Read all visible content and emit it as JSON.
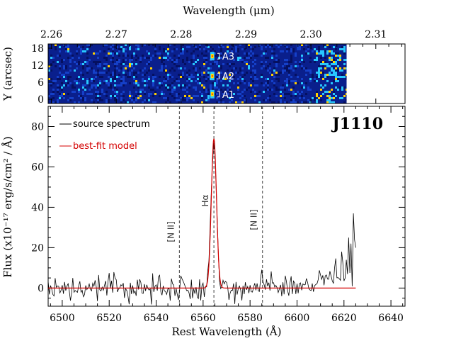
{
  "chart_data": [
    {
      "panel": "2d-spectrum",
      "type": "heatmap",
      "title": "Wavelength (μm)",
      "xlabel": "Wavelength (μm)",
      "ylabel": "Y (arcsec)",
      "xlim": [
        2.2595,
        2.3145
      ],
      "ylim": [
        -1.5,
        19.5
      ],
      "xticks": [
        2.26,
        2.27,
        2.28,
        2.29,
        2.3,
        2.31
      ],
      "xtick_labels": [
        "2.26",
        "2.27",
        "2.28",
        "2.29",
        "2.30",
        "2.31"
      ],
      "yticks": [
        0,
        6,
        12,
        18
      ],
      "ytick_labels": [
        "0",
        "6",
        "12",
        "18"
      ],
      "data_xmax": 2.3055,
      "emission_line_x": 2.2848,
      "apertures": [
        {
          "label": "A3",
          "y": 15.2
        },
        {
          "label": "A2",
          "y": 8.2
        },
        {
          "label": "A1",
          "y": 1.8
        }
      ]
    },
    {
      "panel": "1d-spectrum",
      "type": "line",
      "title": "J1110",
      "xlabel": "Rest Wavelength (Å)",
      "ylabel": "Flux (x10⁻¹⁷ erg/s/cm² / Å)",
      "xlim": [
        6494,
        6646
      ],
      "ylim": [
        -9,
        90
      ],
      "xticks": [
        6500,
        6520,
        6540,
        6560,
        6580,
        6600,
        6620,
        6640
      ],
      "xtick_labels": [
        "6500",
        "6520",
        "6540",
        "6560",
        "6580",
        "6600",
        "6620",
        "6640"
      ],
      "yticks": [
        0,
        20,
        40,
        60,
        80
      ],
      "ytick_labels": [
        "0",
        "20",
        "40",
        "60",
        "80"
      ],
      "legend_position": "top-left",
      "series": [
        {
          "name": "source spectrum",
          "color": "#000000"
        },
        {
          "name": "best-fit model",
          "color": "#d40000"
        }
      ],
      "model": {
        "type": "gaussian",
        "center": 6564.6,
        "amplitude": 74,
        "sigma": 1.1,
        "continuum": 0,
        "x_range": [
          6494,
          6625
        ]
      },
      "source_x_range": [
        6494,
        6625
      ],
      "reference_lines": [
        {
          "x": 6549.9,
          "label": "[N II]"
        },
        {
          "x": 6564.6,
          "label": "Hα"
        },
        {
          "x": 6585.3,
          "label": "[N II]"
        }
      ],
      "red_tail": [
        {
          "x": 6612,
          "y": 6
        },
        {
          "x": 6616,
          "y": 10
        },
        {
          "x": 6619,
          "y": 18
        },
        {
          "x": 6621,
          "y": 14
        },
        {
          "x": 6622,
          "y": 25
        },
        {
          "x": 6623,
          "y": 22
        },
        {
          "x": 6624,
          "y": 37
        },
        {
          "x": 6624.5,
          "y": 24
        },
        {
          "x": 6625,
          "y": 20
        }
      ]
    }
  ]
}
